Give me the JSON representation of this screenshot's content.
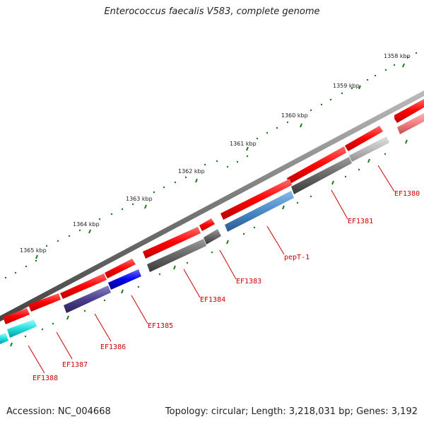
{
  "title": "Enterococcus faecalis V583, complete genome",
  "footer": {
    "accession": "Accession: NC_004668",
    "summary": "Topology: circular; Length: 3,218,031 bp; Genes: 3,192"
  },
  "scale_labels": [
    "1358 kbp",
    "1359 kbp",
    "1360 kbp",
    "1361 kbp",
    "1362 kbp",
    "1363 kbp",
    "1364 kbp",
    "1365 kbp"
  ],
  "gene_labels": [
    "EF1380",
    "EF1381",
    "pepT-1",
    "EF1383",
    "EF1384",
    "EF1385",
    "EF1386",
    "EF1387",
    "EF1388"
  ],
  "colors": {
    "backbone": "#777777",
    "forward_strand": "#ff0000",
    "label": "#cc0000",
    "tick": "#1a7a1a",
    "pepT-1": "#4a8ac8",
    "EF1385": "#0000ee",
    "EF1386": "#4a3f8c",
    "EF1387": "#22dddd",
    "grey_feature": "#666666",
    "light_grey_feature": "#bbbbbb"
  }
}
